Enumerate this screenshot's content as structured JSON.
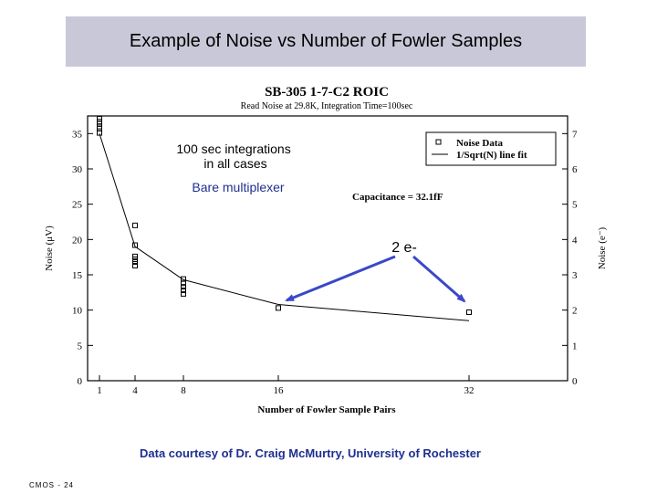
{
  "slide": {
    "title": "Example of Noise vs Number of Fowler Samples",
    "footer": "Data courtesy of Dr. Craig McMurtry, University of Rochester",
    "slide_number": "CMOS - 24",
    "title_bg": "#c8c8d8",
    "footer_color": "#1f2f8f",
    "arrow_color": "#3a48c8"
  },
  "chart_data": {
    "type": "scatter",
    "title": "SB-305 1-7-C2 ROIC",
    "subtitle": "Read Noise at 29.8K, Integration Time=100sec",
    "xlabel": "Number of Fowler Sample Pairs",
    "ylabel": "Noise (μV)",
    "y2label": "Noise (e⁻)",
    "xticks": [
      1,
      4,
      8,
      16,
      32
    ],
    "yticks": [
      0,
      5,
      10,
      15,
      20,
      25,
      30,
      35
    ],
    "y2ticks": [
      0,
      1,
      2,
      3,
      4,
      5,
      6,
      7
    ],
    "ylim": [
      0,
      37.5
    ],
    "y2lim": [
      0,
      7.5
    ],
    "grid": false,
    "legend_position": "top-right",
    "series": [
      {
        "name": "Noise Data",
        "marker": "square",
        "points": [
          {
            "x": 1,
            "y": 35.1
          },
          {
            "x": 1,
            "y": 35.7
          },
          {
            "x": 1,
            "y": 36.0
          },
          {
            "x": 1,
            "y": 36.4
          },
          {
            "x": 1,
            "y": 36.7
          },
          {
            "x": 1,
            "y": 37.1
          },
          {
            "x": 4,
            "y": 22.0
          },
          {
            "x": 4,
            "y": 19.2
          },
          {
            "x": 4,
            "y": 17.6
          },
          {
            "x": 4,
            "y": 17.2
          },
          {
            "x": 4,
            "y": 16.8
          },
          {
            "x": 4,
            "y": 16.3
          },
          {
            "x": 8,
            "y": 14.4
          },
          {
            "x": 8,
            "y": 13.8
          },
          {
            "x": 8,
            "y": 13.3
          },
          {
            "x": 8,
            "y": 12.8
          },
          {
            "x": 8,
            "y": 12.3
          },
          {
            "x": 16,
            "y": 10.3
          },
          {
            "x": 32,
            "y": 9.7
          }
        ]
      },
      {
        "name": "1/Sqrt(N) line fit",
        "points": [
          {
            "x": 1,
            "y": 35.0
          },
          {
            "x": 4,
            "y": 19.0
          },
          {
            "x": 8,
            "y": 14.3
          },
          {
            "x": 16,
            "y": 10.8
          },
          {
            "x": 32,
            "y": 8.5
          }
        ]
      }
    ],
    "annotations": {
      "integrations": "100 sec integrations\nin all cases",
      "multiplexer": "Bare multiplexer",
      "capacitance": "Capacitance = 32.1fF",
      "electrons": "2 e-"
    }
  }
}
